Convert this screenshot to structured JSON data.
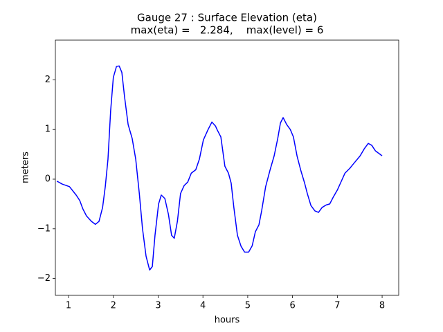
{
  "chart_data": {
    "type": "line",
    "title": "Gauge 27 : Surface Elevation (eta)",
    "subtitle": "max(eta) =   2.284,    max(level) = 6",
    "x_label": "hours",
    "y_label": "meters",
    "color": "#0000ff",
    "x": [
      0.74,
      0.86,
      1.02,
      1.17,
      1.25,
      1.32,
      1.4,
      1.51,
      1.6,
      1.68,
      1.76,
      1.82,
      1.88,
      1.94,
      2.0,
      2.07,
      2.13,
      2.19,
      2.25,
      2.33,
      2.42,
      2.5,
      2.58,
      2.65,
      2.73,
      2.81,
      2.87,
      2.93,
      3.01,
      3.07,
      3.15,
      3.23,
      3.3,
      3.36,
      3.43,
      3.5,
      3.58,
      3.66,
      3.74,
      3.84,
      3.92,
      4.01,
      4.11,
      4.2,
      4.28,
      4.32,
      4.4,
      4.49,
      4.57,
      4.63,
      4.69,
      4.77,
      4.85,
      4.93,
      5.02,
      5.1,
      5.17,
      5.25,
      5.31,
      5.4,
      5.5,
      5.59,
      5.67,
      5.73,
      5.79,
      5.87,
      5.95,
      6.02,
      6.1,
      6.18,
      6.27,
      6.33,
      6.41,
      6.5,
      6.58,
      6.66,
      6.75,
      6.83,
      6.91,
      7.0,
      7.07,
      7.17,
      7.28,
      7.38,
      7.51,
      7.6,
      7.69,
      7.77,
      7.85,
      8.0
    ],
    "values": [
      -0.04,
      -0.1,
      -0.15,
      -0.32,
      -0.43,
      -0.6,
      -0.74,
      -0.85,
      -0.91,
      -0.85,
      -0.57,
      -0.15,
      0.4,
      1.38,
      2.05,
      2.27,
      2.28,
      2.15,
      1.66,
      1.1,
      0.82,
      0.4,
      -0.29,
      -0.99,
      -1.55,
      -1.83,
      -1.76,
      -1.13,
      -0.5,
      -0.32,
      -0.39,
      -0.71,
      -1.13,
      -1.19,
      -0.85,
      -0.29,
      -0.13,
      -0.06,
      0.12,
      0.19,
      0.4,
      0.79,
      0.99,
      1.15,
      1.07,
      0.99,
      0.85,
      0.26,
      0.12,
      -0.08,
      -0.57,
      -1.13,
      -1.35,
      -1.47,
      -1.47,
      -1.34,
      -1.06,
      -0.92,
      -0.64,
      -0.15,
      0.19,
      0.47,
      0.82,
      1.13,
      1.24,
      1.1,
      1.0,
      0.85,
      0.47,
      0.19,
      -0.08,
      -0.29,
      -0.53,
      -0.64,
      -0.67,
      -0.57,
      -0.52,
      -0.5,
      -0.36,
      -0.22,
      -0.08,
      0.12,
      0.22,
      0.33,
      0.47,
      0.61,
      0.72,
      0.68,
      0.57,
      0.47
    ],
    "xlim": [
      0.706,
      8.37
    ],
    "xticks": [
      1,
      2,
      3,
      4,
      5,
      6,
      7,
      8
    ],
    "ylim": [
      -2.34,
      2.8
    ],
    "yticks": [
      {
        "value": -2,
        "label": "−2"
      },
      {
        "value": -1,
        "label": "−1"
      },
      0,
      1,
      2
    ],
    "grid": false
  }
}
